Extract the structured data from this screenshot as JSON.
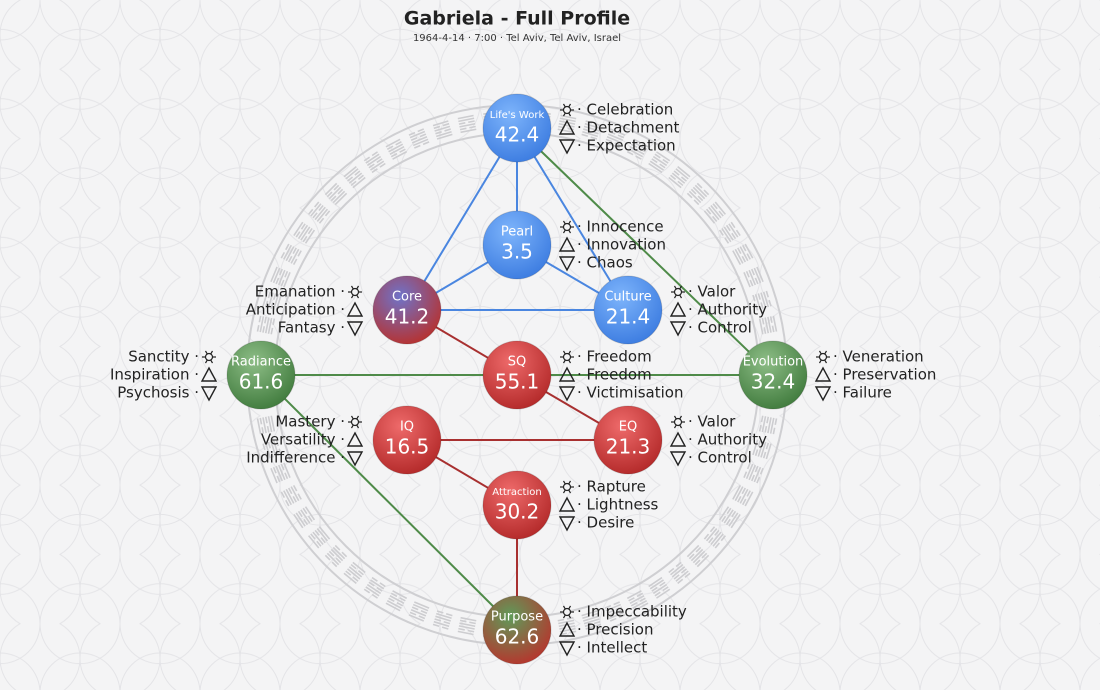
{
  "header": {
    "title": "Gabriela - Full Profile",
    "subtitle": "1964-4-14 · 7:00 · Tel Aviv, Tel Aviv, Israel"
  },
  "nodes": [
    {
      "label": "Life's Work",
      "value": "42.4",
      "lines": [
        "· Celebration",
        "· Detachment",
        "· Expectation"
      ]
    },
    {
      "label": "Pearl",
      "value": "3.5",
      "lines": [
        "· Innocence",
        "· Innovation",
        "· Chaos"
      ]
    },
    {
      "label": "Core",
      "value": "41.2",
      "lines": [
        "Emanation ·",
        "Anticipation ·",
        "Fantasy ·"
      ]
    },
    {
      "label": "Culture",
      "value": "21.4",
      "lines": [
        "· Valor",
        "· Authority",
        "· Control"
      ]
    },
    {
      "label": "Radiance",
      "value": "61.6",
      "lines": [
        "Sanctity ·",
        "Inspiration ·",
        "Psychosis ·"
      ]
    },
    {
      "label": "SQ",
      "value": "55.1",
      "lines": [
        "· Freedom",
        "· Freedom",
        "· Victimisation"
      ]
    },
    {
      "label": "Evolution",
      "value": "32.4",
      "lines": [
        "· Veneration",
        "· Preservation",
        "· Failure"
      ]
    },
    {
      "label": "IQ",
      "value": "16.5",
      "lines": [
        "Mastery ·",
        "Versatility ·",
        "Indifference ·"
      ]
    },
    {
      "label": "EQ",
      "value": "21.3",
      "lines": [
        "· Valor",
        "· Authority",
        "· Control"
      ]
    },
    {
      "label": "Attraction",
      "value": "30.2",
      "lines": [
        "· Rapture",
        "· Lightness",
        "· Desire"
      ]
    },
    {
      "label": "Purpose",
      "value": "62.6",
      "lines": [
        "· Impeccability",
        "· Precision",
        "· Intellect"
      ]
    }
  ]
}
